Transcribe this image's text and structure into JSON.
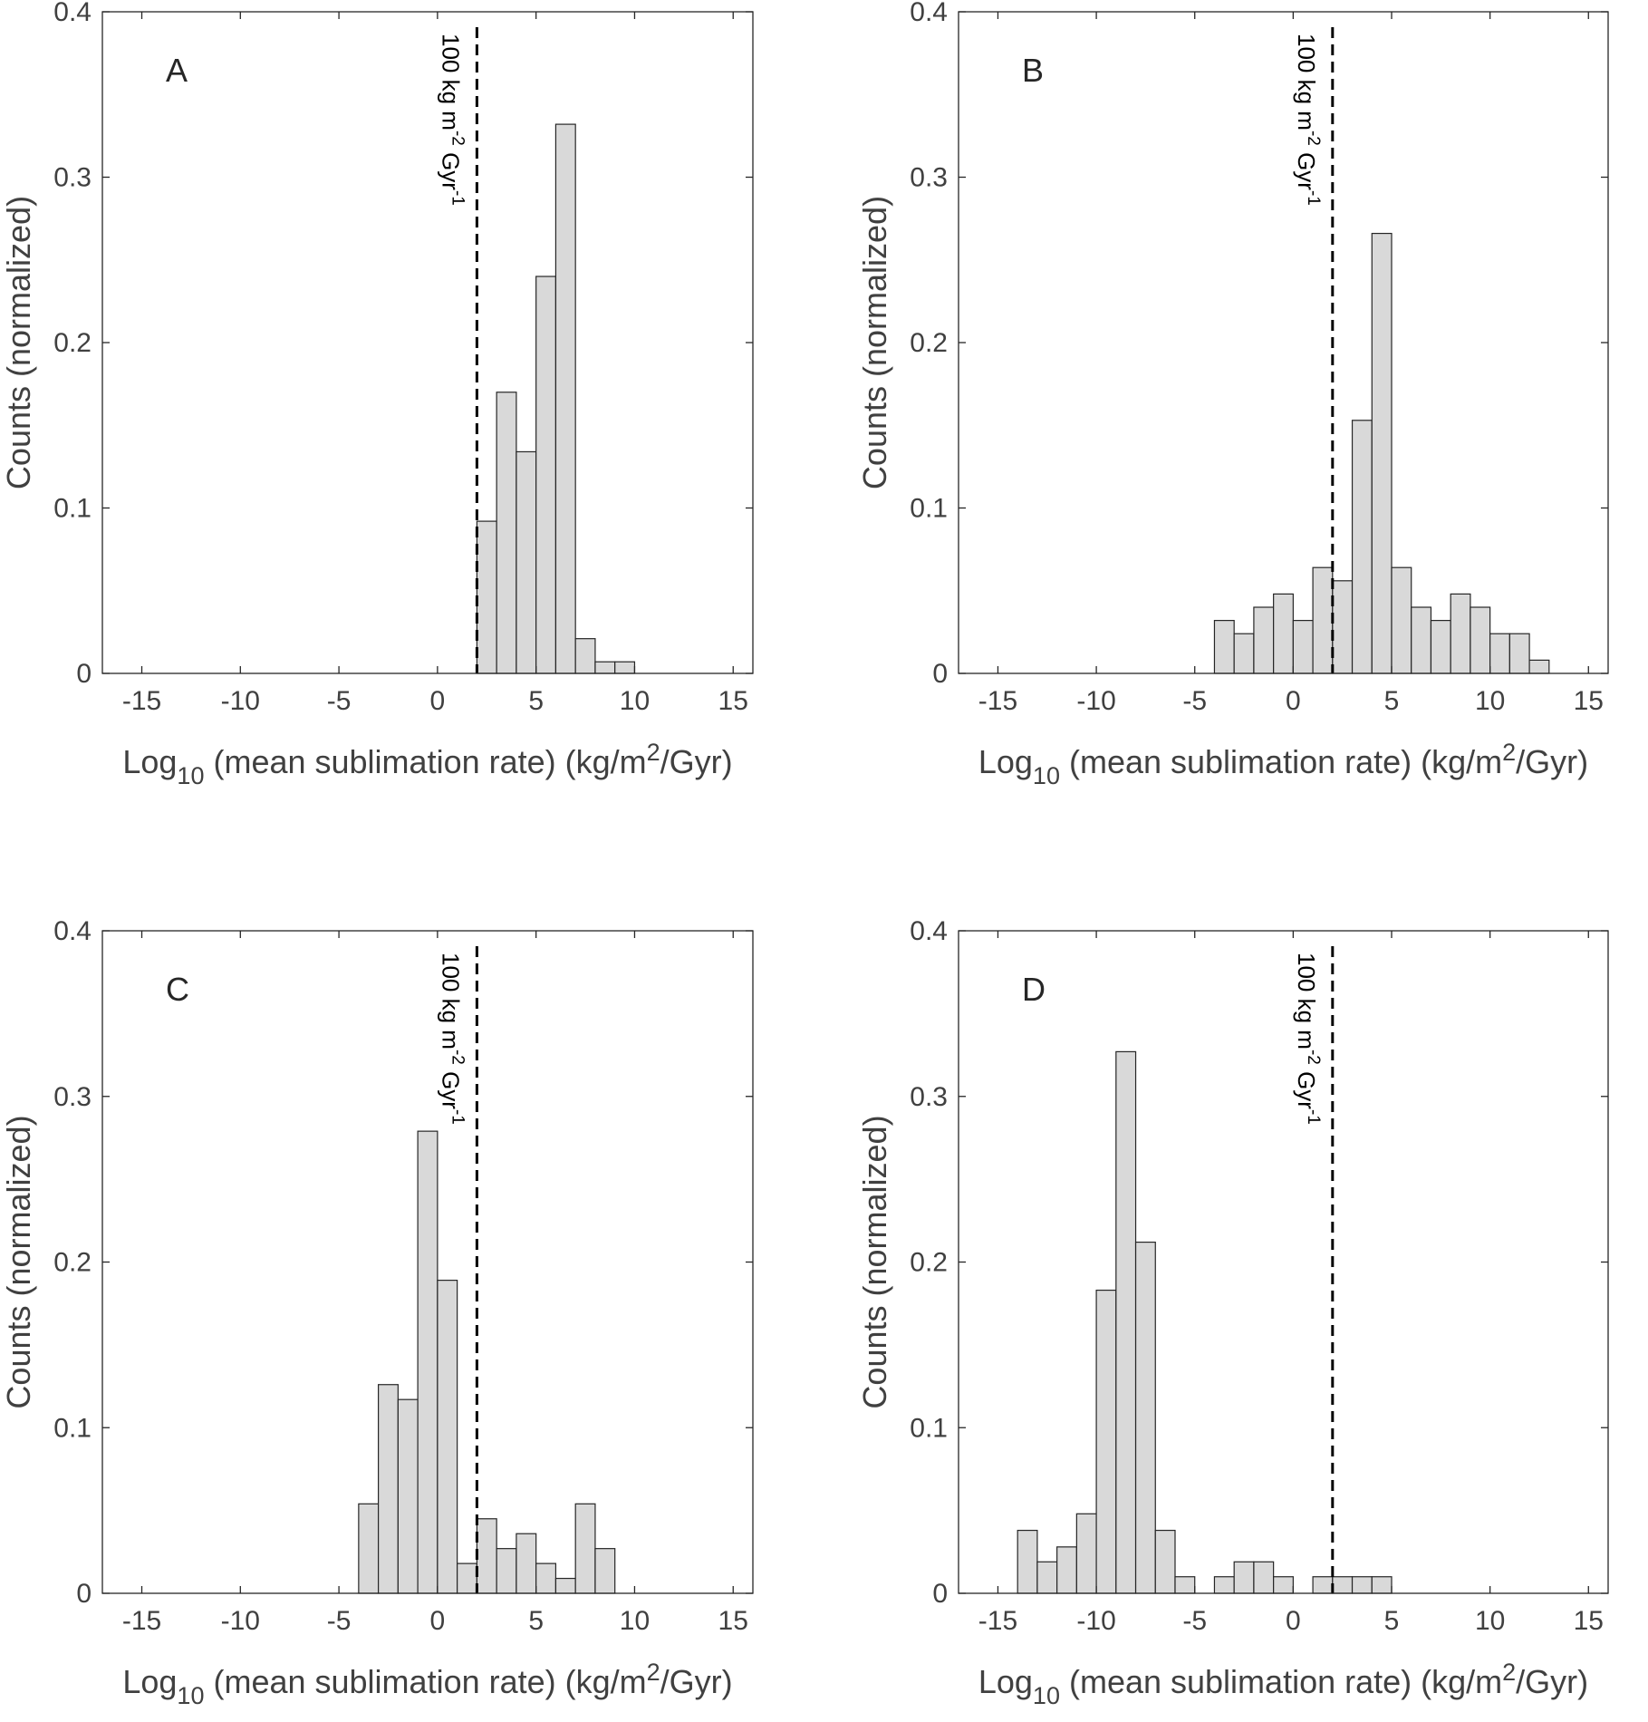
{
  "chart_data": [
    {
      "type": "bar",
      "panel": "A",
      "title": "",
      "xlabel": "Log10 (mean sublimation rate) (kg/m2/Gyr)",
      "xlabel_parts": {
        "main": "Log",
        "sub": "10",
        "mid": " (mean sublimation rate) (kg/m",
        "sup": "2",
        "end": "/Gyr)"
      },
      "ylabel": "Counts (normalized)",
      "xlim": [
        -17,
        16
      ],
      "ylim": [
        0,
        0.4
      ],
      "xticks": [
        -15,
        -10,
        -5,
        0,
        5,
        10,
        15
      ],
      "xtick_labels": [
        "-15",
        "-10",
        "-5",
        "0",
        "5",
        "10",
        "15"
      ],
      "yticks": [
        0,
        0.1,
        0.2,
        0.3,
        0.4
      ],
      "ytick_labels": [
        "0",
        "0.1",
        "0.2",
        "0.3",
        "0.4"
      ],
      "bin_width": 1,
      "bin_start": 2,
      "values": [
        0.092,
        0.17,
        0.134,
        0.24,
        0.332,
        0.021,
        0.007,
        0.007
      ],
      "reference_line": {
        "x": 2,
        "label_parts": {
          "a": "100 kg m",
          "b": "-2",
          "c": " Gyr",
          "d": "-1"
        }
      }
    },
    {
      "type": "bar",
      "panel": "B",
      "title": "",
      "xlabel": "Log10 (mean sublimation rate) (kg/m2/Gyr)",
      "xlabel_parts": {
        "main": "Log",
        "sub": "10",
        "mid": " (mean sublimation rate) (kg/m",
        "sup": "2",
        "end": "/Gyr)"
      },
      "ylabel": "Counts (normalized)",
      "xlim": [
        -17,
        16
      ],
      "ylim": [
        0,
        0.4
      ],
      "xticks": [
        -15,
        -10,
        -5,
        0,
        5,
        10,
        15
      ],
      "xtick_labels": [
        "-15",
        "-10",
        "-5",
        "0",
        "5",
        "10",
        "15"
      ],
      "yticks": [
        0,
        0.1,
        0.2,
        0.3,
        0.4
      ],
      "ytick_labels": [
        "0",
        "0.1",
        "0.2",
        "0.3",
        "0.4"
      ],
      "bin_width": 1,
      "bin_start": -4,
      "values": [
        0.032,
        0.024,
        0.04,
        0.048,
        0.032,
        0.064,
        0.056,
        0.153,
        0.266,
        0.064,
        0.04,
        0.032,
        0.048,
        0.04,
        0.024,
        0.024,
        0.008
      ],
      "reference_line": {
        "x": 2,
        "label_parts": {
          "a": "100 kg m",
          "b": "-2",
          "c": " Gyr",
          "d": "-1"
        }
      }
    },
    {
      "type": "bar",
      "panel": "C",
      "title": "",
      "xlabel": "Log10 (mean sublimation rate) (kg/m2/Gyr)",
      "xlabel_parts": {
        "main": "Log",
        "sub": "10",
        "mid": " (mean sublimation rate) (kg/m",
        "sup": "2",
        "end": "/Gyr)"
      },
      "ylabel": "Counts (normalized)",
      "xlim": [
        -17,
        16
      ],
      "ylim": [
        0,
        0.4
      ],
      "xticks": [
        -15,
        -10,
        -5,
        0,
        5,
        10,
        15
      ],
      "xtick_labels": [
        "-15",
        "-10",
        "-5",
        "0",
        "5",
        "10",
        "15"
      ],
      "yticks": [
        0,
        0.1,
        0.2,
        0.3,
        0.4
      ],
      "ytick_labels": [
        "0",
        "0.1",
        "0.2",
        "0.3",
        "0.4"
      ],
      "bin_width": 1,
      "bin_start": -4,
      "values": [
        0.054,
        0.126,
        0.117,
        0.279,
        0.189,
        0.018,
        0.045,
        0.027,
        0.036,
        0.018,
        0.009,
        0.054,
        0.027
      ],
      "reference_line": {
        "x": 2,
        "label_parts": {
          "a": "100 kg m",
          "b": "-2",
          "c": " Gyr",
          "d": "-1"
        }
      }
    },
    {
      "type": "bar",
      "panel": "D",
      "title": "",
      "xlabel": "Log10 (mean sublimation rate) (kg/m2/Gyr)",
      "xlabel_parts": {
        "main": "Log",
        "sub": "10",
        "mid": " (mean sublimation rate) (kg/m",
        "sup": "2",
        "end": "/Gyr)"
      },
      "ylabel": "Counts (normalized)",
      "xlim": [
        -17,
        16
      ],
      "ylim": [
        0,
        0.4
      ],
      "xticks": [
        -15,
        -10,
        -5,
        0,
        5,
        10,
        15
      ],
      "xtick_labels": [
        "-15",
        "-10",
        "-5",
        "0",
        "5",
        "10",
        "15"
      ],
      "yticks": [
        0,
        0.1,
        0.2,
        0.3,
        0.4
      ],
      "ytick_labels": [
        "0",
        "0.1",
        "0.2",
        "0.3",
        "0.4"
      ],
      "bin_width": 1,
      "bin_start": -14,
      "values": [
        0.038,
        0.019,
        0.028,
        0.048,
        0.183,
        0.327,
        0.212,
        0.038,
        0.01,
        0,
        0.01,
        0.019,
        0.019,
        0.01,
        0,
        0.01,
        0.01,
        0.01,
        0.01
      ],
      "reference_line": {
        "x": 2,
        "label_parts": {
          "a": "100 kg m",
          "b": "-2",
          "c": " Gyr",
          "d": "-1"
        }
      }
    }
  ],
  "style": {
    "bar_fill": "#d9d9d9",
    "bar_stroke": "#262626",
    "axis_color": "#262626",
    "text_color": "#404040",
    "reference_color": "#000000"
  }
}
